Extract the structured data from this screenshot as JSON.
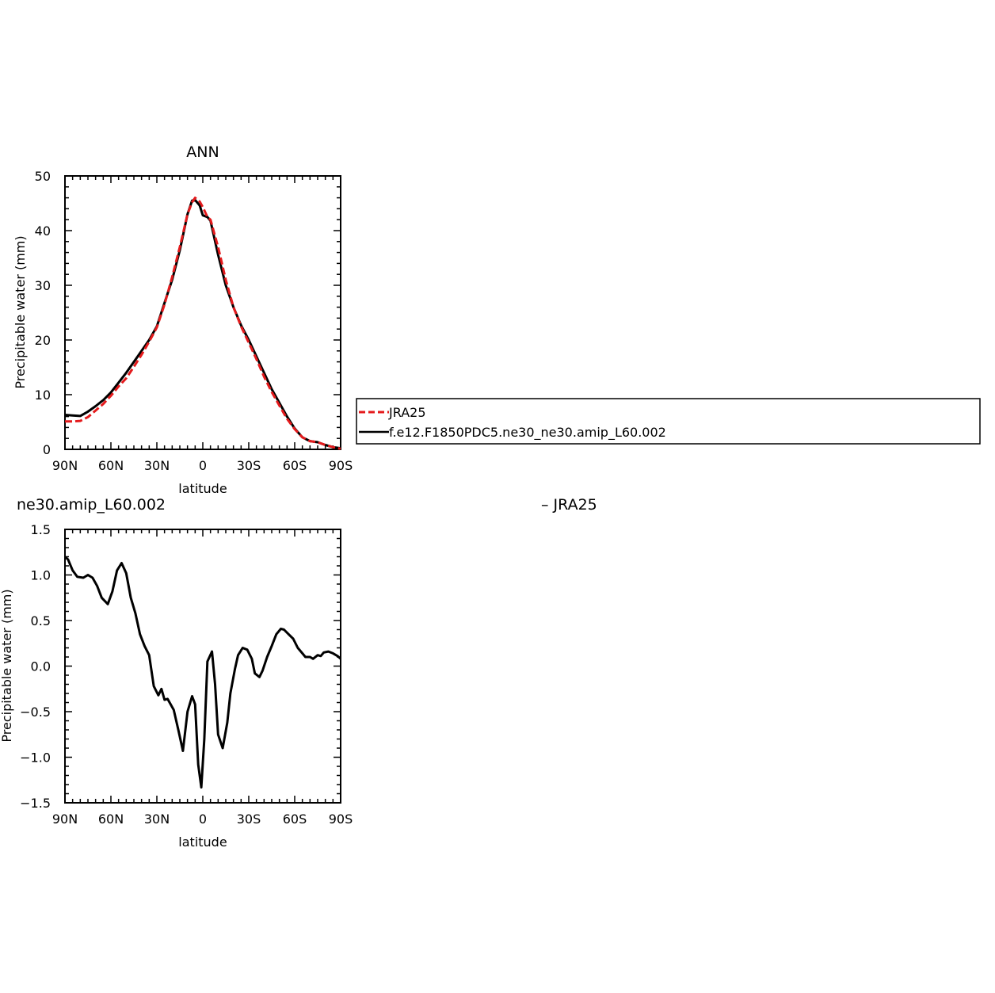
{
  "colors": {
    "model": "#000000",
    "jra": "#e41a1c",
    "axis": "#000000",
    "background": "#ffffff"
  },
  "chart_data": [
    {
      "type": "line",
      "title": "ANN",
      "xlabel": "latitude",
      "ylabel": "Precipitable water (mm)",
      "xlim": [
        -90,
        90
      ],
      "ylim": [
        0,
        50
      ],
      "xticks": [
        -90,
        -60,
        -30,
        0,
        30,
        60,
        90
      ],
      "xtick_labels": [
        "90N",
        "60N",
        "30N",
        "0",
        "30S",
        "60S",
        "90S"
      ],
      "yticks": [
        0,
        10,
        20,
        30,
        40,
        50
      ],
      "ytick_labels": [
        "0",
        "10",
        "20",
        "30",
        "40",
        "50"
      ],
      "legend": {
        "entries": [
          {
            "label": "JRA25",
            "color": "#e41a1c",
            "style": "dashed"
          },
          {
            "label": "f.e12.F1850PDC5.ne30_ne30.amip_L60.002",
            "color": "#000000",
            "style": "solid"
          }
        ],
        "placement": "right"
      },
      "series": [
        {
          "name": "f.e12.F1850PDC5.ne30_ne30.amip_L60.002",
          "color": "#000000",
          "style": "solid",
          "x": [
            -90,
            -85,
            -80,
            -75,
            -70,
            -65,
            -60,
            -55,
            -50,
            -45,
            -40,
            -35,
            -30,
            -25,
            -20,
            -15,
            -10,
            -7,
            -5,
            -2,
            0,
            3,
            5,
            10,
            15,
            20,
            25,
            30,
            35,
            40,
            45,
            50,
            55,
            60,
            65,
            70,
            75,
            80,
            85,
            90
          ],
          "y": [
            6.3,
            6.2,
            6.1,
            6.9,
            7.9,
            9.0,
            10.4,
            12.2,
            14.0,
            16.0,
            18.0,
            20.0,
            22.5,
            26.8,
            31.0,
            36.4,
            43.0,
            45.5,
            45.6,
            44.6,
            42.8,
            42.5,
            41.8,
            35.6,
            30.0,
            26.0,
            22.7,
            20.0,
            17.0,
            14.0,
            11.0,
            8.5,
            6.0,
            3.8,
            2.2,
            1.5,
            1.3,
            0.8,
            0.4,
            0.2
          ]
        },
        {
          "name": "JRA25",
          "color": "#e41a1c",
          "style": "dashed",
          "x": [
            -90,
            -85,
            -80,
            -75,
            -70,
            -65,
            -60,
            -55,
            -50,
            -45,
            -40,
            -35,
            -30,
            -25,
            -20,
            -15,
            -10,
            -7,
            -5,
            -2,
            0,
            3,
            5,
            10,
            15,
            20,
            25,
            30,
            35,
            40,
            45,
            50,
            55,
            60,
            65,
            70,
            75,
            80,
            85,
            90
          ],
          "y": [
            5.1,
            5.1,
            5.2,
            5.9,
            7.1,
            8.3,
            9.8,
            11.5,
            13.0,
            15.1,
            17.3,
            19.7,
            22.3,
            26.5,
            31.5,
            37.0,
            43.0,
            45.2,
            46.0,
            45.3,
            44.3,
            42.5,
            42.0,
            37.0,
            31.0,
            26.0,
            22.5,
            19.5,
            16.5,
            13.3,
            10.5,
            8.0,
            5.6,
            3.7,
            2.2,
            1.5,
            1.3,
            0.8,
            0.4,
            0.1
          ]
        }
      ]
    },
    {
      "type": "line",
      "title_left": "ne30.amip_L60.002",
      "title_right": "– JRA25",
      "xlabel": "latitude",
      "ylabel": "Precipitable water (mm)",
      "xlim": [
        -90,
        90
      ],
      "ylim": [
        -1.5,
        1.5
      ],
      "xticks": [
        -90,
        -60,
        -30,
        0,
        30,
        60,
        90
      ],
      "xtick_labels": [
        "90N",
        "60N",
        "30N",
        "0",
        "30S",
        "60S",
        "90S"
      ],
      "yticks": [
        -1.5,
        -1.0,
        -0.5,
        0.0,
        0.5,
        1.0,
        1.5
      ],
      "ytick_labels": [
        "−1.5",
        "−1.0",
        "−0.5",
        "0.0",
        "0.5",
        "1.0",
        "1.5"
      ],
      "series": [
        {
          "color": "#000000",
          "style": "solid",
          "x": [
            -90,
            -88,
            -85,
            -82,
            -78,
            -75,
            -72,
            -69,
            -66,
            -62,
            -59,
            -56,
            -53,
            -50,
            -47,
            -44,
            -41,
            -38,
            -35,
            -32,
            -29,
            -27,
            -25,
            -23,
            -21,
            -19,
            -16,
            -13,
            -10,
            -7,
            -5,
            -3,
            -1,
            1,
            3,
            6,
            8,
            10,
            13,
            16,
            18,
            21,
            23,
            26,
            29,
            32,
            34,
            37,
            39,
            42,
            45,
            48,
            51,
            53,
            56,
            59,
            62,
            65,
            67,
            70,
            72,
            75,
            77,
            79,
            82,
            85,
            88,
            90
          ],
          "y": [
            1.2,
            1.17,
            1.05,
            0.98,
            0.97,
            1.0,
            0.97,
            0.88,
            0.75,
            0.68,
            0.82,
            1.05,
            1.13,
            1.02,
            0.75,
            0.58,
            0.35,
            0.22,
            0.12,
            -0.22,
            -0.32,
            -0.25,
            -0.37,
            -0.36,
            -0.42,
            -0.48,
            -0.7,
            -0.93,
            -0.5,
            -0.33,
            -0.42,
            -1.08,
            -1.33,
            -0.8,
            0.05,
            0.16,
            -0.2,
            -0.75,
            -0.9,
            -0.62,
            -0.3,
            -0.03,
            0.12,
            0.2,
            0.18,
            0.08,
            -0.08,
            -0.12,
            -0.05,
            0.1,
            0.22,
            0.35,
            0.41,
            0.4,
            0.35,
            0.3,
            0.2,
            0.14,
            0.1,
            0.1,
            0.08,
            0.12,
            0.11,
            0.15,
            0.16,
            0.14,
            0.11,
            0.08
          ]
        }
      ]
    }
  ]
}
